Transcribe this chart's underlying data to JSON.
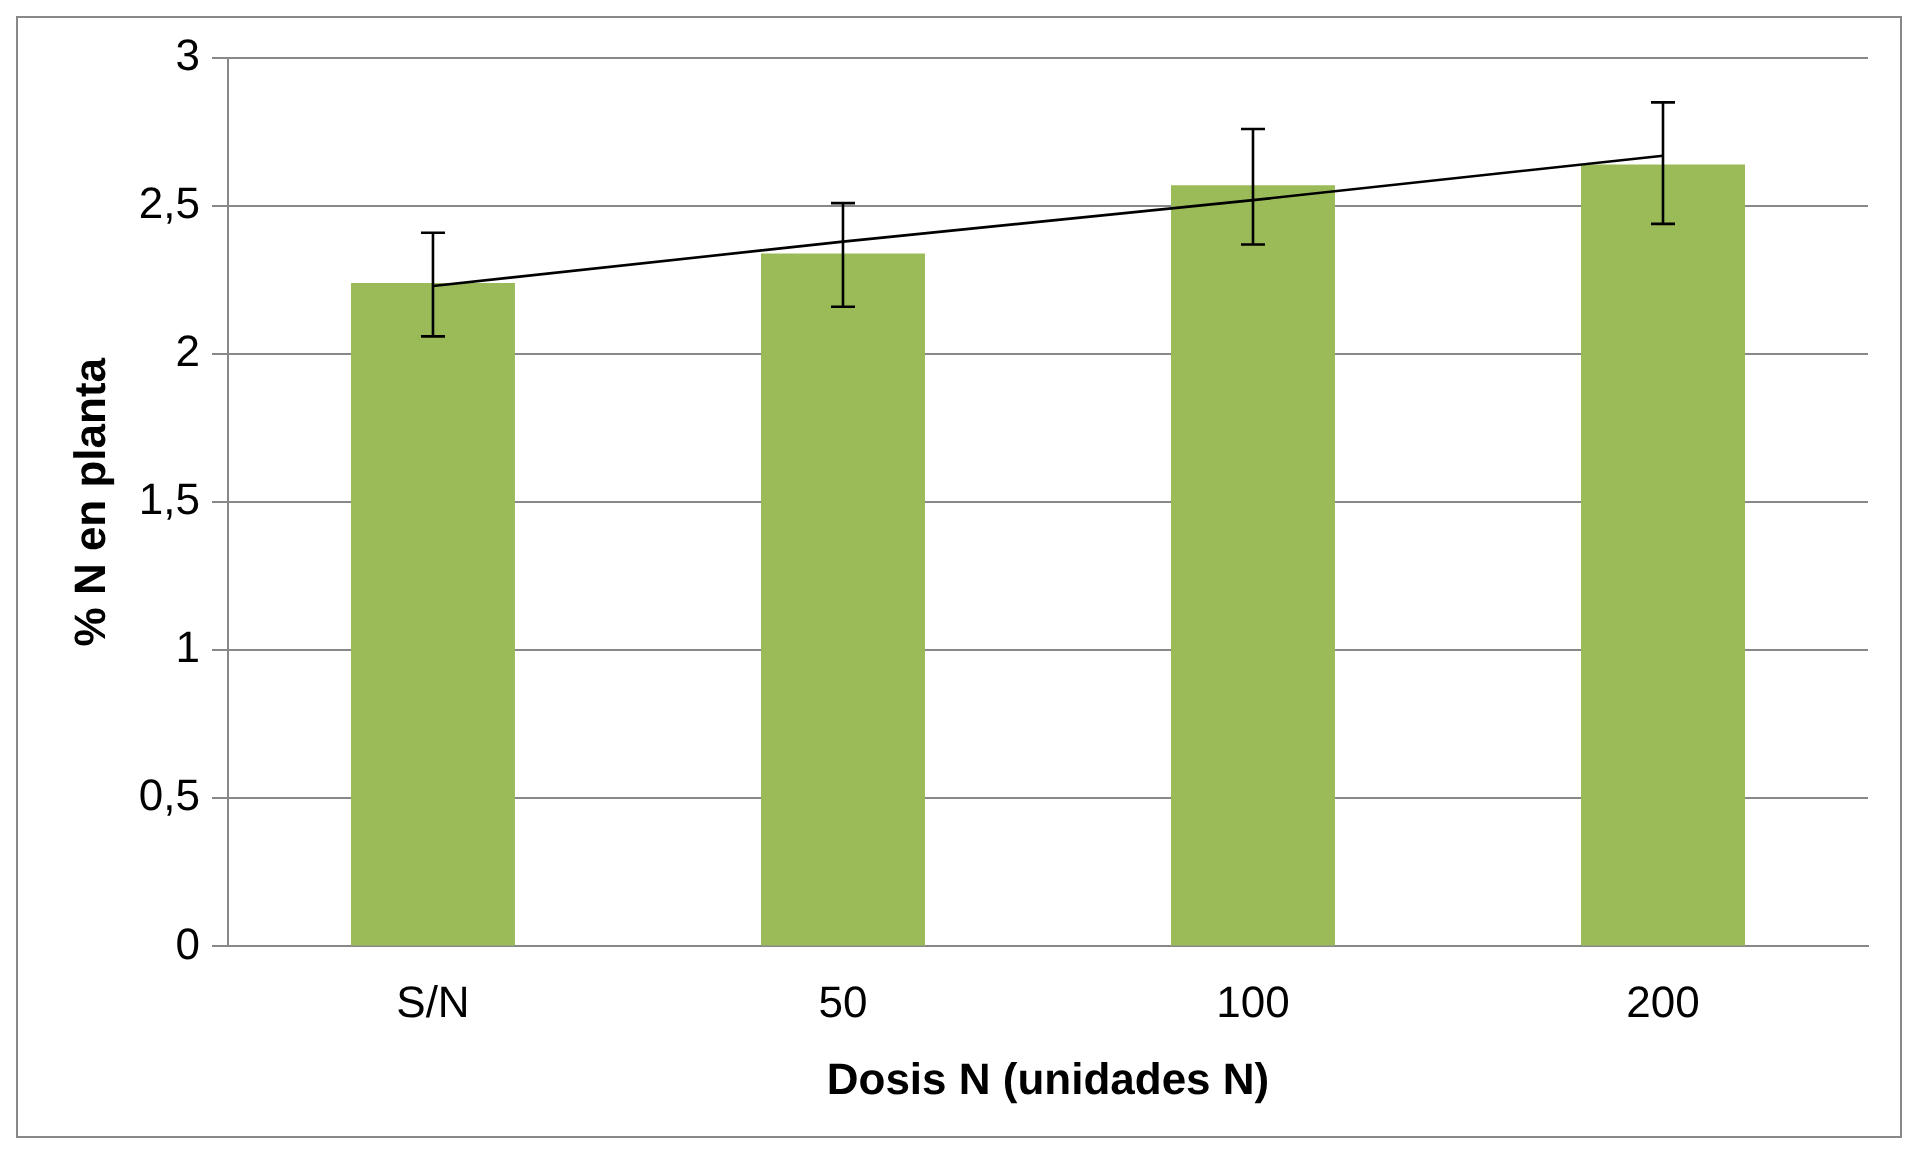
{
  "chart_data": {
    "type": "bar",
    "xlabel": "Dosis N (unidades N)",
    "ylabel": "% N en planta",
    "categories": [
      "S/N",
      "50",
      "100",
      "200"
    ],
    "series": [
      {
        "color": "#9bbb59",
        "values": [
          2.24,
          2.34,
          2.57,
          2.64
        ],
        "errors": [
          [
            2.06,
            2.41
          ],
          [
            2.16,
            2.51
          ],
          [
            2.37,
            2.76
          ],
          [
            2.44,
            2.85
          ]
        ]
      },
      {
        "type": "line",
        "color": "#000000",
        "values": [
          2.23,
          2.38,
          2.52,
          2.67
        ],
        "marker": "none"
      }
    ],
    "ylim": [
      0,
      3
    ],
    "yticks": [
      {
        "value": 0,
        "label": "0"
      },
      {
        "value": 0.5,
        "label": "0,5"
      },
      {
        "value": 1,
        "label": "1"
      },
      {
        "value": 1.5,
        "label": "1,5"
      },
      {
        "value": 2,
        "label": "2"
      },
      {
        "value": 2.5,
        "label": "2,5"
      },
      {
        "value": 3,
        "label": "3"
      }
    ],
    "grid": "y",
    "legend": false
  }
}
